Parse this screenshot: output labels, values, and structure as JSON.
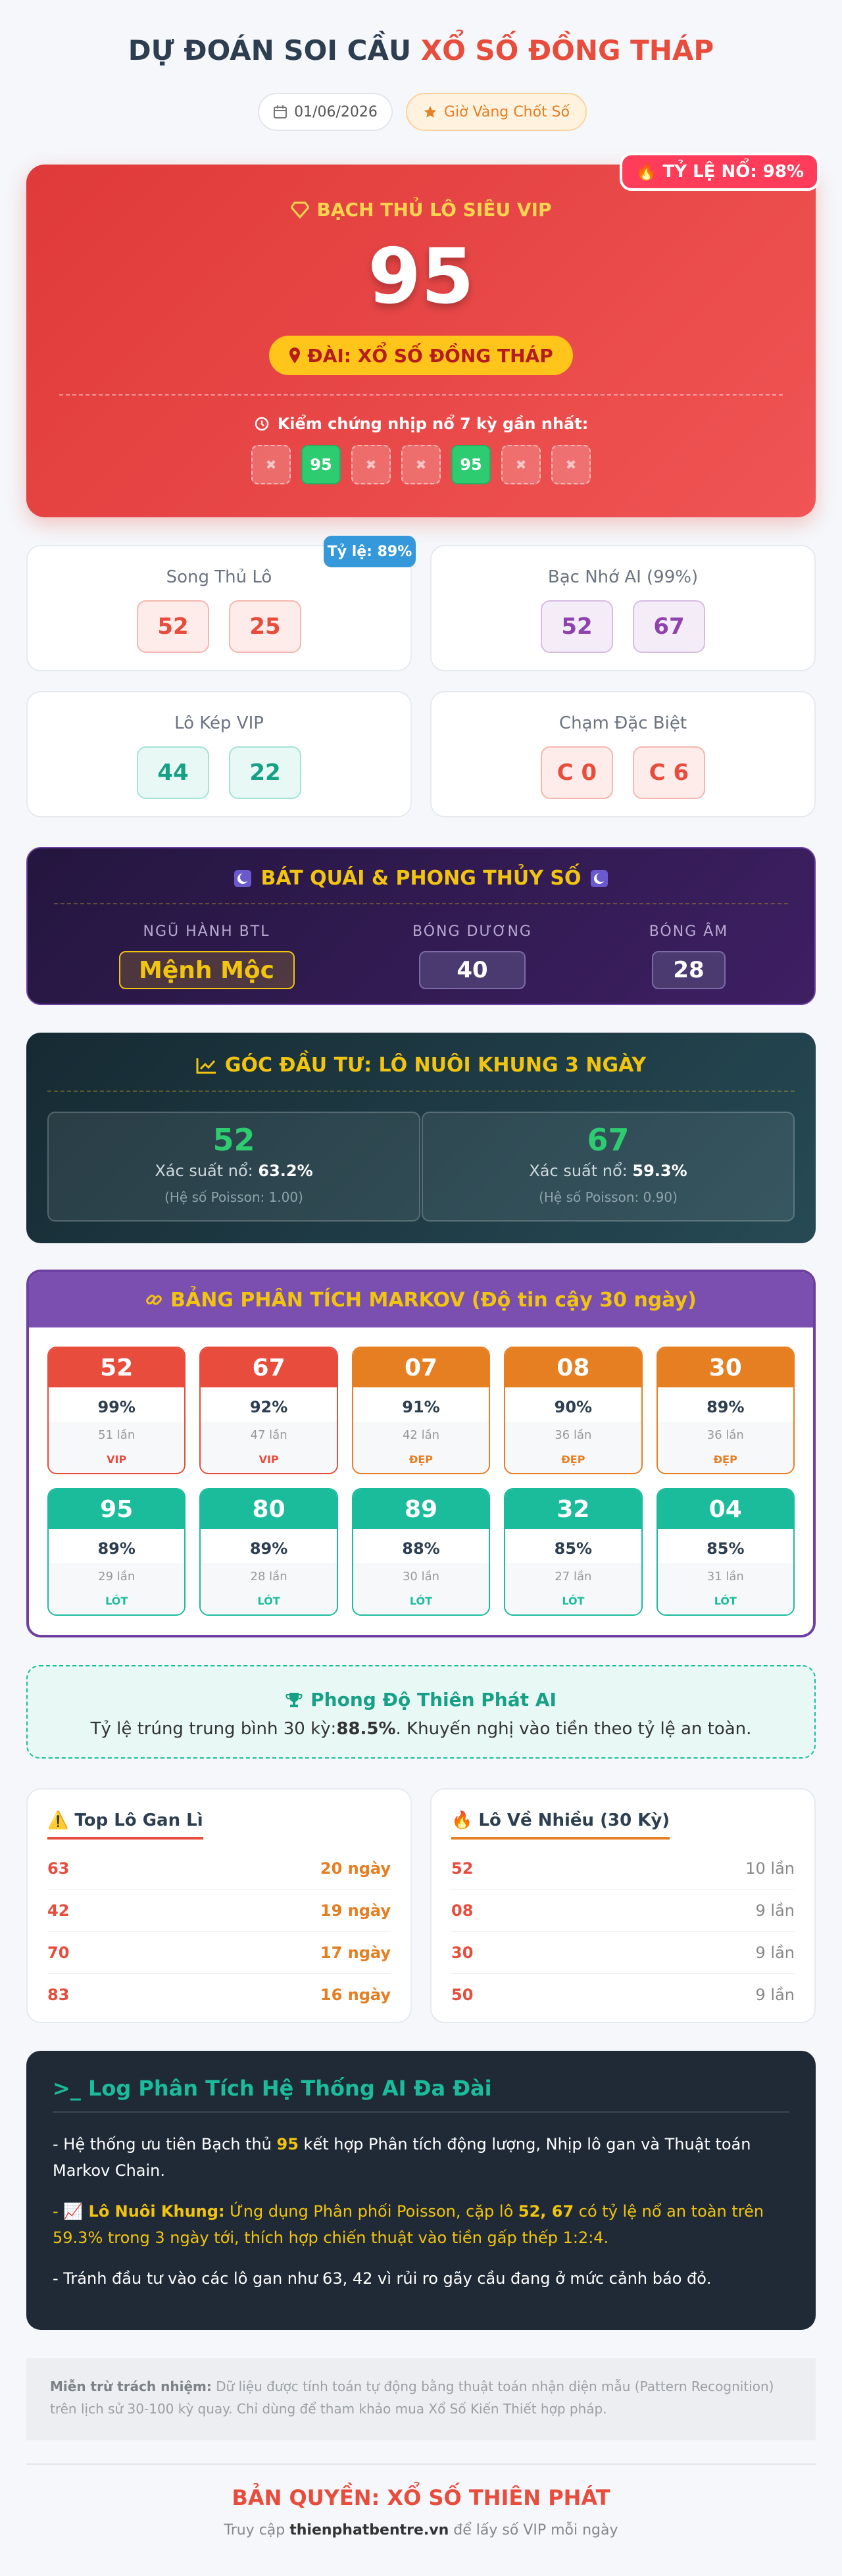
{
  "header": {
    "title": [
      "DỰ ĐOÁN SOI CẦU ",
      "XỔ SỐ ĐỒNG THÁP"
    ],
    "date": "01/06/2026",
    "badge": "Giờ Vàng Chốt Số"
  },
  "hero": {
    "rate_badge": "🔥 TỶ LỆ NỔ: 98%",
    "label": "BẠCH THỦ LÔ SIÊU VIP",
    "number": "95",
    "station": "ĐÀI: XỔ SỐ ĐỒNG THÁP",
    "history_label": "Kiểm chứng nhịp nổ 7 kỳ gần nhất:",
    "history": [
      "✖",
      "95",
      "✖",
      "✖",
      "95",
      "✖",
      "✖"
    ]
  },
  "cards": [
    {
      "title": "Song Thủ Lô",
      "badge": "Tỷ lệ: 89%",
      "numbers": [
        "52",
        "25"
      ],
      "color": "#e74c3c",
      "bg": "#fdecea",
      "border": "#f5b7b1"
    },
    {
      "title": "Bạc Nhớ AI (99%)",
      "numbers": [
        "52",
        "67"
      ],
      "color": "#8e44ad",
      "bg": "#f4ecf7",
      "border": "#d7bde2"
    },
    {
      "title": "Lô Kép VIP",
      "numbers": [
        "44",
        "22"
      ],
      "color": "#16a085",
      "bg": "#e8f8f5",
      "border": "#a3e4d7"
    },
    {
      "title": "Chạm Đặc Biệt",
      "numbers": [
        "C 0",
        "C 6"
      ],
      "color": "#e74c3c",
      "bg": "#fdecea",
      "border": "#f5b7b1"
    }
  ],
  "fengshui": {
    "title": "BÁT QUÁI & PHONG THỦY SỐ",
    "items": [
      {
        "label": "NGŨ HÀNH BTL",
        "value": "Mệnh Mộc"
      },
      {
        "label": "BÓNG DƯƠNG",
        "value": "40"
      },
      {
        "label": "BÓNG ÂM",
        "value": "28"
      }
    ]
  },
  "invest": {
    "title": "GÓC ĐẦU TƯ: LÔ NUÔI KHUNG 3 NGÀY",
    "items": [
      {
        "number": "52",
        "prob_label": "Xác suất nổ: ",
        "prob": "63.2%",
        "note": "(Hệ số Poisson: 1.00)"
      },
      {
        "number": "67",
        "prob_label": "Xác suất nổ: ",
        "prob": "59.3%",
        "note": "(Hệ số Poisson: 0.90)"
      }
    ]
  },
  "markov": {
    "title": "BẢNG PHÂN TÍCH MARKOV (Độ tin cậy 30 ngày)",
    "items": [
      {
        "number": "52",
        "percent": "99%",
        "count": "51 lần",
        "tag": "VIP",
        "color": "#e74c3c"
      },
      {
        "number": "67",
        "percent": "92%",
        "count": "47 lần",
        "tag": "VIP",
        "color": "#e74c3c"
      },
      {
        "number": "07",
        "percent": "91%",
        "count": "42 lần",
        "tag": "ĐẸP",
        "color": "#e67e22"
      },
      {
        "number": "08",
        "percent": "90%",
        "count": "36 lần",
        "tag": "ĐẸP",
        "color": "#e67e22"
      },
      {
        "number": "30",
        "percent": "89%",
        "count": "36 lần",
        "tag": "ĐẸP",
        "color": "#e67e22"
      },
      {
        "number": "95",
        "percent": "89%",
        "count": "29 lần",
        "tag": "LÓT",
        "color": "#1abc9c"
      },
      {
        "number": "80",
        "percent": "89%",
        "count": "28 lần",
        "tag": "LÓT",
        "color": "#1abc9c"
      },
      {
        "number": "89",
        "percent": "88%",
        "count": "30 lần",
        "tag": "LÓT",
        "color": "#1abc9c"
      },
      {
        "number": "32",
        "percent": "85%",
        "count": "27 lần",
        "tag": "LÓT",
        "color": "#1abc9c"
      },
      {
        "number": "04",
        "percent": "85%",
        "count": "31 lần",
        "tag": "LÓT",
        "color": "#1abc9c"
      }
    ]
  },
  "performance": {
    "title": "Phong Độ Thiên Phát AI",
    "text": [
      "Tỷ lệ trúng trung bình 30 kỳ: ",
      "88.5%",
      ". Khuyến nghị vào tiền theo tỷ lệ an toàn."
    ]
  },
  "gan": {
    "title": "⚠️ Top Lô Gan Lì",
    "rows": [
      [
        "63",
        "20 ngày"
      ],
      [
        "42",
        "19 ngày"
      ],
      [
        "70",
        "17 ngày"
      ],
      [
        "83",
        "16 ngày"
      ]
    ]
  },
  "hot": {
    "title": "🔥 Lô Về Nhiều (30 Kỳ)",
    "rows": [
      [
        "52",
        "10 lần"
      ],
      [
        "08",
        "9 lần"
      ],
      [
        "30",
        "9 lần"
      ],
      [
        "50",
        "9 lần"
      ]
    ]
  },
  "log": {
    "title": ">_ Log Phân Tích Hệ Thống AI Đa Đài",
    "lines": [
      [
        "- Hệ thống ưu tiên Bạch thủ ",
        "95",
        " kết hợp Phân tích động lượng, Nhịp lô gan và Thuật toán Markov Chain."
      ],
      [
        "- ",
        "📈 Lô Nuôi Khung:",
        " Ứng dụng Phân phối Poisson, cặp lô ",
        "52, 67",
        " có tỷ lệ nổ an toàn trên 59.3% trong 3 ngày tới, thích hợp chiến thuật vào tiền gấp thếp 1:2:4."
      ],
      [
        "- Tránh đầu tư vào các lô gan như 63, 42 vì rủi ro gãy cầu đang ở mức cảnh báo đỏ."
      ]
    ]
  },
  "disclaimer": [
    "Miễn trừ trách nhiệm:",
    " Dữ liệu được tính toán tự động bằng thuật toán nhận diện mẫu (Pattern Recognition) trên lịch sử 30-100 kỳ quay. Chỉ dùng để tham khảo mua Xổ Số Kiến Thiết hợp pháp."
  ],
  "footer": {
    "copyright": "BẢN QUYỀN: XỔ SỐ THIÊN PHÁT",
    "visit": [
      "Truy cập ",
      "thienphatbentre.vn",
      " để lấy số VIP mỗi ngày"
    ]
  }
}
